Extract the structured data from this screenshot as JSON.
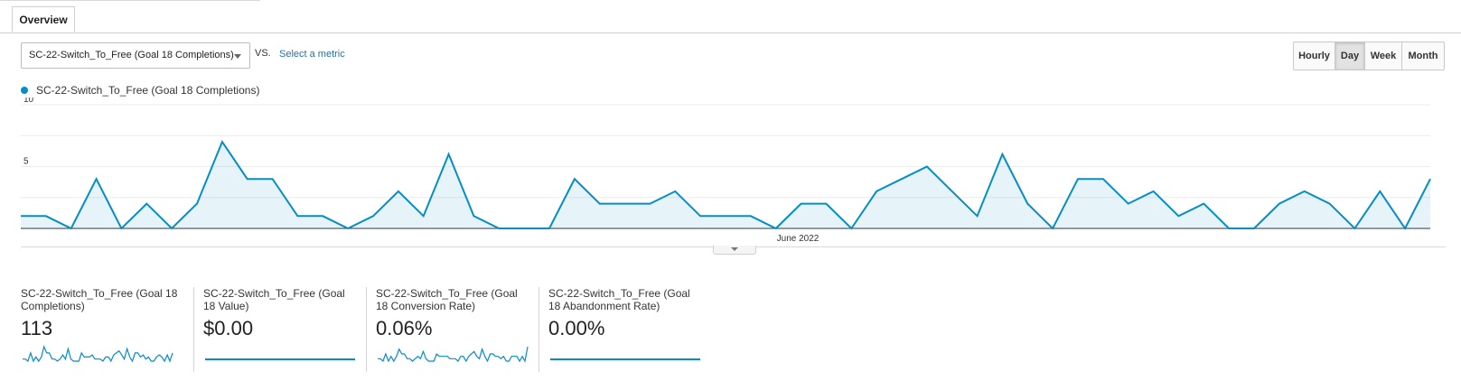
{
  "tabs": [
    {
      "label": "Overview",
      "active": true
    }
  ],
  "controls": {
    "metric_selected": "SC-22-Switch_To_Free (Goal 18 Completions)",
    "vs_label": "VS.",
    "select_metric_link": "Select a metric",
    "granularity": [
      "Hourly",
      "Day",
      "Week",
      "Month"
    ],
    "granularity_active": "Day"
  },
  "chart_data": {
    "type": "area",
    "series": [
      {
        "name": "SC-22-Switch_To_Free (Goal 18 Completions)",
        "color": "#058dc7",
        "values": [
          1,
          1,
          0,
          4,
          0,
          2,
          0,
          2,
          7,
          4,
          4,
          1,
          1,
          0,
          1,
          3,
          1,
          6,
          1,
          0,
          0,
          0,
          4,
          2,
          2,
          2,
          3,
          1,
          1,
          1,
          0,
          2,
          2,
          0,
          3,
          4,
          5,
          3,
          1,
          6,
          2,
          0,
          4,
          4,
          2,
          3,
          1,
          2,
          0,
          0,
          2,
          3,
          2,
          0,
          3,
          0,
          4
        ]
      }
    ],
    "x_label": "June 2022",
    "y_ticks": [
      10,
      5
    ],
    "ylim": [
      0,
      10
    ],
    "grid": true
  },
  "scorecards": [
    {
      "name": "SC-22-Switch_To_Free (Goal 18 Completions)",
      "value": "113",
      "spark": [
        1,
        1,
        0,
        4,
        0,
        2,
        0,
        2,
        7,
        4,
        4,
        1,
        1,
        0,
        1,
        3,
        1,
        6,
        1,
        0,
        0,
        0,
        4,
        2,
        2,
        2,
        3,
        1,
        1,
        1,
        0,
        2,
        2,
        0,
        3,
        4,
        5,
        3,
        1,
        6,
        2,
        0,
        4,
        4,
        2,
        3,
        1,
        2,
        0,
        0,
        2,
        3,
        2,
        0,
        3,
        0,
        4
      ]
    },
    {
      "name": "SC-22-Switch_To_Free (Goal 18 Value)",
      "value": "$0.00",
      "spark": [
        0,
        0,
        0,
        0,
        0,
        0,
        0,
        0,
        0,
        0,
        0,
        0,
        0,
        0,
        0,
        0,
        0,
        0,
        0,
        0
      ]
    },
    {
      "name": "SC-22-Switch_To_Free (Goal 18 Conversion Rate)",
      "value": "0.06%",
      "spark": [
        1,
        1,
        0,
        3,
        0,
        2,
        0,
        2,
        5,
        3,
        3,
        1,
        1,
        0,
        1,
        2,
        1,
        4,
        1,
        0,
        0,
        0,
        3,
        2,
        2,
        2,
        2,
        1,
        1,
        1,
        0,
        2,
        2,
        0,
        2,
        3,
        4,
        2,
        1,
        5,
        2,
        0,
        3,
        3,
        2,
        2,
        1,
        2,
        0,
        0,
        2,
        2,
        2,
        0,
        2,
        0,
        6
      ]
    },
    {
      "name": "SC-22-Switch_To_Free (Goal 18 Abandonment Rate)",
      "value": "0.00%",
      "spark": [
        0,
        0,
        0,
        0,
        0,
        0,
        0,
        0,
        0,
        0,
        0,
        0,
        0,
        0,
        0,
        0,
        0,
        0,
        0,
        0
      ]
    }
  ]
}
